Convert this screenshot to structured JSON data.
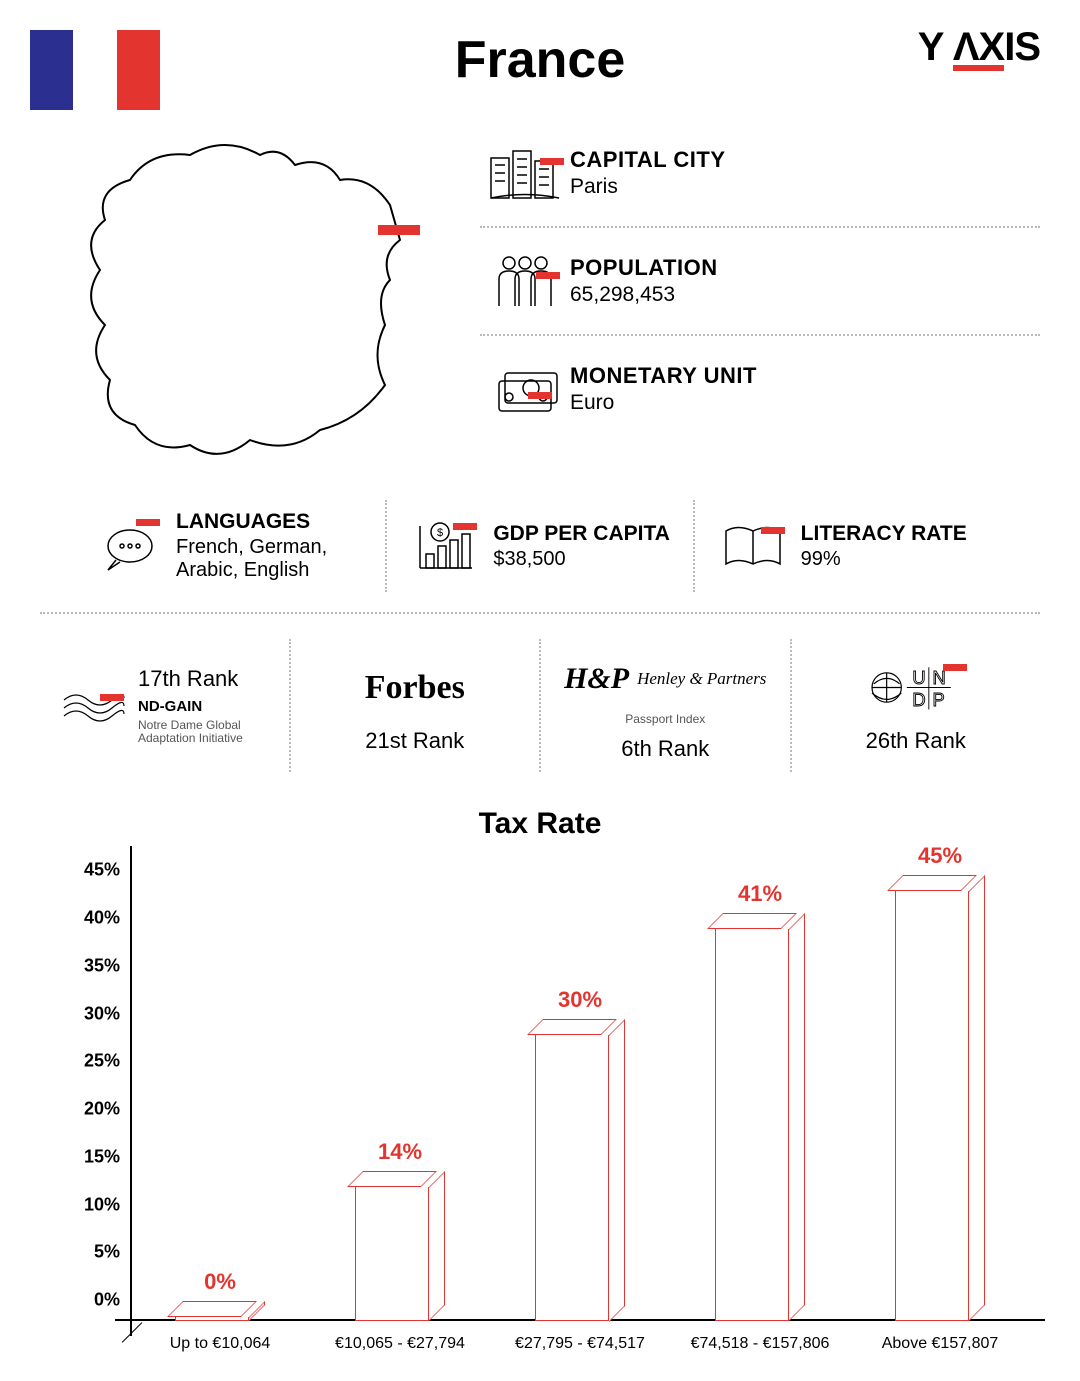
{
  "title": "France",
  "logo_text": "Y ΛXIS",
  "flag_colors": [
    "#2b2f8f",
    "#ffffff",
    "#e3342f"
  ],
  "accent_color": "#e3342f",
  "facts": {
    "capital": {
      "label": "CAPITAL CITY",
      "value": "Paris"
    },
    "population": {
      "label": "POPULATION",
      "value": "65,298,453"
    },
    "currency": {
      "label": "MONETARY UNIT",
      "value": "Euro"
    },
    "languages": {
      "label": "LANGUAGES",
      "value": "French, German, Arabic, English"
    },
    "gdp": {
      "label": "GDP PER CAPITA",
      "value": "$38,500"
    },
    "literacy": {
      "label": "LITERACY RATE",
      "value": "99%"
    }
  },
  "rankings": {
    "ndgain": {
      "brand": "ND-GAIN",
      "subtitle": "Notre Dame Global Adaptation Initiative",
      "rank": "17th Rank"
    },
    "forbes": {
      "brand": "Forbes",
      "rank": "21st Rank"
    },
    "henley": {
      "brand": "Henley & Partners",
      "subtitle": "Passport Index",
      "rank": "6th Rank"
    },
    "undp": {
      "brand": "UNDP",
      "rank": "26th Rank"
    }
  },
  "tax_chart": {
    "title": "Tax Rate",
    "type": "bar",
    "y_axis": {
      "min": 0,
      "max": 45,
      "step": 5,
      "suffix": "%"
    },
    "bar_color": "#e3342f",
    "bars": [
      {
        "bracket": "Up to €10,064",
        "rate": 0,
        "label": "0%"
      },
      {
        "bracket": "€10,065 - €27,794",
        "rate": 14,
        "label": "14%"
      },
      {
        "bracket": "€27,795 - €74,517",
        "rate": 30,
        "label": "30%"
      },
      {
        "bracket": "€74,518 - €157,806",
        "rate": 41,
        "label": "41%"
      },
      {
        "bracket": "Above €157,807",
        "rate": 45,
        "label": "45%"
      }
    ]
  }
}
